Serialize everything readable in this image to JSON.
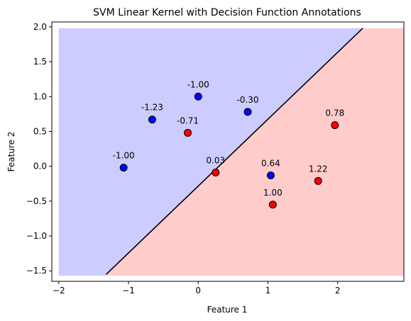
{
  "chart_data": {
    "type": "scatter",
    "title": "SVM Linear Kernel with Decision Function Annotations",
    "xlabel": "Feature 1",
    "ylabel": "Feature 2",
    "xlim": [
      -2.1,
      2.95
    ],
    "ylim": [
      -1.65,
      2.07
    ],
    "region_xlim": [
      -2.0,
      2.95
    ],
    "region_ylim": [
      -1.57,
      1.98
    ],
    "grid": false,
    "xticks": [
      -2,
      -1,
      0,
      1,
      2
    ],
    "xtick_labels": [
      "−2",
      "−1",
      "0",
      "1",
      "2"
    ],
    "yticks": [
      -1.5,
      -1.0,
      -0.5,
      0.0,
      0.5,
      1.0,
      1.5,
      2.0
    ],
    "ytick_labels": [
      "−1.5",
      "−1.0",
      "−0.5",
      "0.0",
      "0.5",
      "1.0",
      "1.5",
      "2.0"
    ],
    "decision_boundary": {
      "x": [
        -1.32,
        2.36
      ],
      "y": [
        -1.55,
        1.98
      ]
    },
    "colors": {
      "class_neg_region": "#ccccff",
      "class_pos_region": "#ffcccc",
      "class_neg_point": "#0000ff",
      "class_pos_point": "#ff0000",
      "boundary": "#000000"
    },
    "points": [
      {
        "x": -1.07,
        "y": -0.02,
        "class": "blue",
        "label": "-1.00"
      },
      {
        "x": -0.66,
        "y": 0.67,
        "class": "blue",
        "label": "-1.23"
      },
      {
        "x": 0.0,
        "y": 1.0,
        "class": "blue",
        "label": "-1.00"
      },
      {
        "x": 0.71,
        "y": 0.78,
        "class": "blue",
        "label": "-0.30"
      },
      {
        "x": 1.04,
        "y": -0.13,
        "class": "blue",
        "label": "0.64"
      },
      {
        "x": -0.15,
        "y": 0.48,
        "class": "red",
        "label": "-0.71"
      },
      {
        "x": 0.25,
        "y": -0.09,
        "class": "red",
        "label": "0.03"
      },
      {
        "x": 1.07,
        "y": -0.55,
        "class": "red",
        "label": "1.00"
      },
      {
        "x": 1.72,
        "y": -0.21,
        "class": "red",
        "label": "1.22"
      },
      {
        "x": 1.96,
        "y": 0.59,
        "class": "red",
        "label": "0.78"
      }
    ]
  }
}
